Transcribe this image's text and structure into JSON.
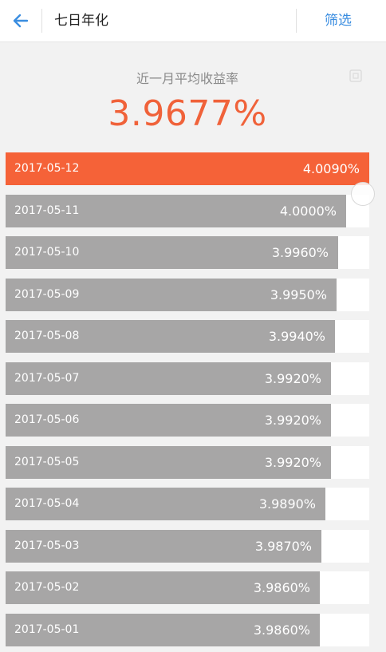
{
  "header": {
    "back_icon": "arrow-left-icon",
    "title": "七日年化",
    "filter_label": "筛选",
    "accent_color": "#3a8de0"
  },
  "summary": {
    "label": "近一月平均收益率",
    "value": "3.9677%",
    "icon": "copy-icon",
    "value_color": "#f0623a"
  },
  "colors": {
    "highlight_bar": "#f56238",
    "normal_bar": "#a7a6a6"
  },
  "rows": [
    {
      "date": "2017-05-12",
      "value_text": "4.0090%",
      "value": 4.009,
      "highlight": true
    },
    {
      "date": "2017-05-11",
      "value_text": "4.0000%",
      "value": 4.0,
      "highlight": false
    },
    {
      "date": "2017-05-10",
      "value_text": "3.9960%",
      "value": 3.996,
      "highlight": false
    },
    {
      "date": "2017-05-09",
      "value_text": "3.9950%",
      "value": 3.995,
      "highlight": false
    },
    {
      "date": "2017-05-08",
      "value_text": "3.9940%",
      "value": 3.994,
      "highlight": false
    },
    {
      "date": "2017-05-07",
      "value_text": "3.9920%",
      "value": 3.992,
      "highlight": false
    },
    {
      "date": "2017-05-06",
      "value_text": "3.9920%",
      "value": 3.992,
      "highlight": false
    },
    {
      "date": "2017-05-05",
      "value_text": "3.9920%",
      "value": 3.992,
      "highlight": false
    },
    {
      "date": "2017-05-04",
      "value_text": "3.9890%",
      "value": 3.989,
      "highlight": false
    },
    {
      "date": "2017-05-03",
      "value_text": "3.9870%",
      "value": 3.987,
      "highlight": false
    },
    {
      "date": "2017-05-02",
      "value_text": "3.9860%",
      "value": 3.986,
      "highlight": false
    },
    {
      "date": "2017-05-01",
      "value_text": "3.9860%",
      "value": 3.986,
      "highlight": false
    }
  ]
}
